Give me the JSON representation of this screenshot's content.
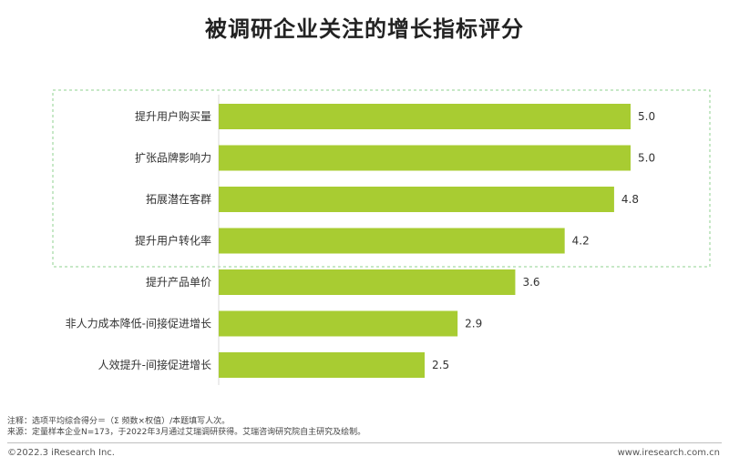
{
  "colors": {
    "bar": "#a8cc32",
    "highlight_border": "#8fd08f",
    "label": "#333333"
  },
  "chart_data": {
    "type": "bar",
    "orientation": "horizontal",
    "title": "被调研企业关注的增长指标评分",
    "categories": [
      "提升用户购买量",
      "扩张品牌影响力",
      "拓展潜在客群",
      "提升用户转化率",
      "提升产品单价",
      "非人力成本降低-间接促进增长",
      "人效提升-间接促进增长"
    ],
    "values": [
      5.0,
      5.0,
      4.8,
      4.2,
      3.6,
      2.9,
      2.5
    ],
    "value_labels": [
      "5.0",
      "5.0",
      "4.8",
      "4.2",
      "3.6",
      "2.9",
      "2.5"
    ],
    "highlighted_categories": [
      "提升用户购买量",
      "扩张品牌影响力",
      "拓展潜在客群",
      "提升用户转化率"
    ],
    "xlim": [
      0,
      5.0
    ],
    "grid": false,
    "legend": "none"
  },
  "notes": {
    "note": "注释：选项平均综合得分＝（Σ 频数×权值）/本题填写人次。",
    "source": "来源：定量样本企业N=173，于2022年3月通过艾瑞调研获得。艾瑞咨询研究院自主研究及绘制。"
  },
  "footer": {
    "copyright": "©2022.3 iResearch Inc.",
    "url": "www.iresearch.com.cn"
  }
}
